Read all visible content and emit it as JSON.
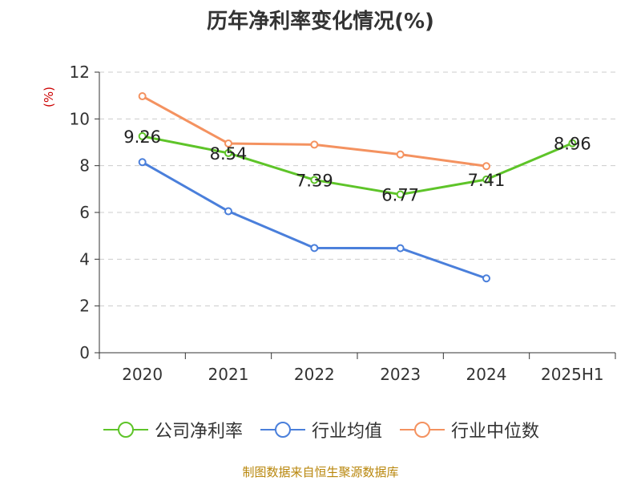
{
  "chart_data": {
    "type": "line",
    "title": "历年净利率变化情况(%)",
    "unit_label": "(%)",
    "categories": [
      "2020",
      "2021",
      "2022",
      "2023",
      "2024",
      "2025H1"
    ],
    "ylim": [
      0,
      12
    ],
    "yticks": [
      0,
      2,
      4,
      6,
      8,
      10,
      12
    ],
    "grid": true,
    "legend_position": "bottom",
    "series": [
      {
        "name": "公司净利率",
        "color": "#5ec429",
        "values": [
          9.26,
          8.54,
          7.39,
          6.77,
          7.41,
          8.96
        ],
        "labels": [
          "9.26",
          "8.54",
          "7.39",
          "6.77",
          "7.41",
          "8.96"
        ]
      },
      {
        "name": "行业均值",
        "color": "#4a7fdb",
        "values": [
          8.15,
          6.05,
          4.48,
          4.47,
          3.18,
          null
        ],
        "labels": []
      },
      {
        "name": "行业中位数",
        "color": "#f49260",
        "values": [
          10.97,
          8.95,
          8.9,
          8.48,
          7.98,
          null
        ],
        "labels": []
      }
    ]
  },
  "footer": {
    "source": "制图数据来自恒生聚源数据库"
  }
}
